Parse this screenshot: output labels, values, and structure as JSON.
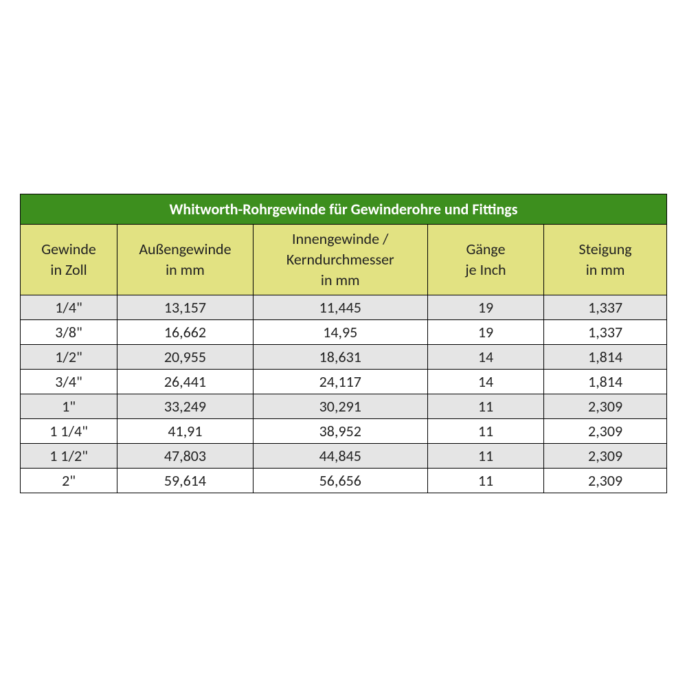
{
  "table": {
    "title": "Whitworth-Rohrgewinde für Gewinderohre und Fittings",
    "title_bg_color": "#3d8f1e",
    "title_text_color": "#ffffff",
    "header_bg_color": "#e2e282",
    "header_text_color": "#222222",
    "row_odd_bg_color": "#e5e5e5",
    "row_even_bg_color": "#ffffff",
    "border_color": "#000000",
    "font_family": "Calibri, Arial, sans-serif",
    "title_fontsize": 22,
    "header_fontsize": 22,
    "cell_fontsize": 22,
    "columns": [
      {
        "line1": "Gewinde",
        "line2": "in Zoll",
        "width_pct": 15
      },
      {
        "line1": "Außengewinde",
        "line2": "in mm",
        "width_pct": 21
      },
      {
        "line1": "Innengewinde /",
        "line2": "Kerndurchmesser",
        "line3": "in mm",
        "width_pct": 27
      },
      {
        "line1": "Gänge",
        "line2": "je Inch",
        "width_pct": 18
      },
      {
        "line1": "Steigung",
        "line2": "in mm",
        "width_pct": 19
      }
    ],
    "rows": [
      {
        "c0": "1/4\"",
        "c1": "13,157",
        "c2": "11,445",
        "c3": "19",
        "c4": "1,337"
      },
      {
        "c0": "3/8\"",
        "c1": "16,662",
        "c2": "14,95",
        "c3": "19",
        "c4": "1,337"
      },
      {
        "c0": "1/2\"",
        "c1": "20,955",
        "c2": "18,631",
        "c3": "14",
        "c4": "1,814"
      },
      {
        "c0": "3/4\"",
        "c1": "26,441",
        "c2": "24,117",
        "c3": "14",
        "c4": "1,814"
      },
      {
        "c0": "1\"",
        "c1": "33,249",
        "c2": "30,291",
        "c3": "11",
        "c4": "2,309"
      },
      {
        "c0": "1 1/4\"",
        "c1": "41,91",
        "c2": "38,952",
        "c3": "11",
        "c4": "2,309"
      },
      {
        "c0": "1 1/2\"",
        "c1": "47,803",
        "c2": "44,845",
        "c3": "11",
        "c4": "2,309"
      },
      {
        "c0": "2\"",
        "c1": "59,614",
        "c2": "56,656",
        "c3": "11",
        "c4": "2,309"
      }
    ]
  }
}
